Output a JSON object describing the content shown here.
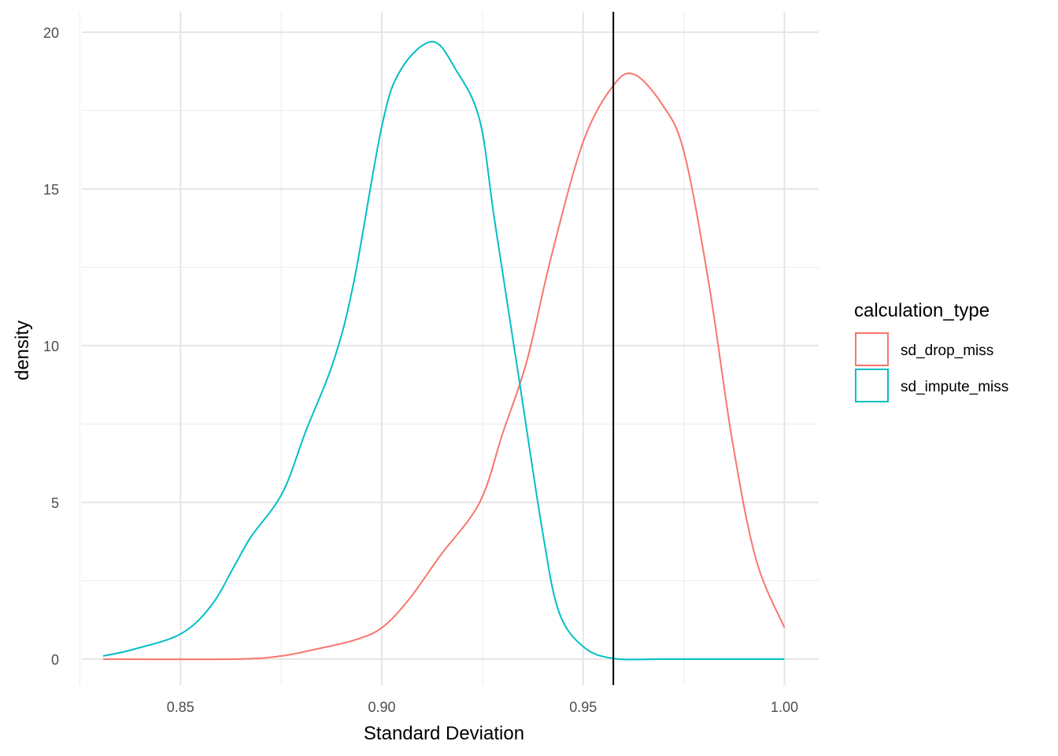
{
  "chart_data": {
    "type": "line",
    "subtype": "density",
    "title": "",
    "xlabel": "Standard Deviation",
    "ylabel": "density",
    "xlim": [
      0.8255,
      1.0085
    ],
    "ylim": [
      -0.83,
      20.65
    ],
    "xticks": [
      0.85,
      0.9,
      0.95,
      1.0
    ],
    "xtick_labels": [
      "0.85",
      "0.90",
      "0.95",
      "1.00"
    ],
    "yticks": [
      0,
      5,
      10,
      15,
      20
    ],
    "ytick_labels": [
      "0",
      "5",
      "10",
      "15",
      "20"
    ],
    "grid": true,
    "legend": {
      "title": "calculation_type",
      "position": "right"
    },
    "vline": {
      "x": 0.9575,
      "color": "#000000"
    },
    "series": [
      {
        "name": "sd_drop_miss",
        "color": "#F8766D",
        "x": [
          0.8308,
          0.8635,
          0.875,
          0.883,
          0.893,
          0.9,
          0.9067,
          0.9145,
          0.9243,
          0.93,
          0.936,
          0.942,
          0.95,
          0.9575,
          0.9627,
          0.9696,
          0.975,
          0.9812,
          0.987,
          0.9929,
          1.0
        ],
        "y": [
          0,
          0,
          0.1,
          0.3,
          0.6,
          1.0,
          1.9,
          3.3,
          5.0,
          7.2,
          9.5,
          12.8,
          16.5,
          18.3,
          18.65,
          17.7,
          16.2,
          12.0,
          7.0,
          3.2,
          1.0
        ]
      },
      {
        "name": "sd_impute_miss",
        "color": "#00BFC4",
        "x": [
          0.8308,
          0.838,
          0.85,
          0.8576,
          0.8635,
          0.8675,
          0.8753,
          0.8812,
          0.888,
          0.893,
          0.9,
          0.9047,
          0.9125,
          0.9184,
          0.9243,
          0.928,
          0.934,
          0.94,
          0.944,
          0.95,
          0.9575,
          0.97,
          1.0
        ],
        "y": [
          0.1,
          0.3,
          0.8,
          1.7,
          3.0,
          3.9,
          5.3,
          7.3,
          9.5,
          12.0,
          17.0,
          18.8,
          19.7,
          18.8,
          17.2,
          14.0,
          9.0,
          4.0,
          1.5,
          0.4,
          0.02,
          0,
          0
        ]
      }
    ]
  }
}
